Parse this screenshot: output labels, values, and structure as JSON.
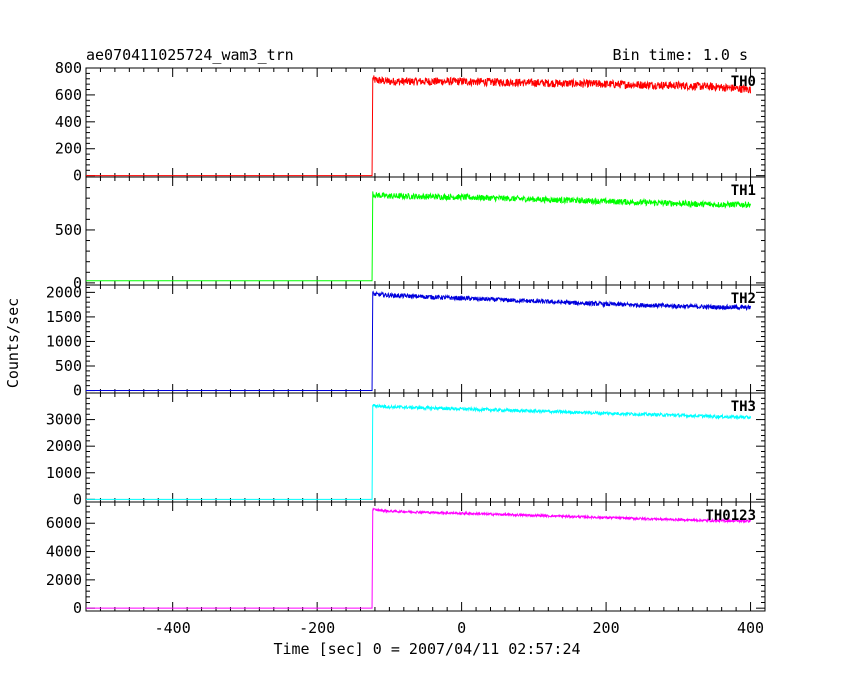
{
  "header": {
    "title": "ae070411025724_wam3_trn",
    "bin_time": "Bin time: 1.0 s"
  },
  "chart_data": {
    "type": "line",
    "xlabel": "Time [sec] 0 = 2007/04/11 02:57:24",
    "ylabel": "Counts/sec",
    "xlim": [
      -520,
      420
    ],
    "x_ticks": [
      -400,
      -200,
      0,
      200,
      400
    ],
    "grid": false,
    "trigger_time": -123,
    "data_end": 400,
    "panels": [
      {
        "name": "TH0",
        "color": "#ff0000",
        "ylim": [
          -10,
          800
        ],
        "y_ticks": [
          0,
          200,
          400,
          600,
          800
        ],
        "x": [
          -520,
          -124,
          -123,
          -120,
          -100,
          0,
          100,
          200,
          300,
          350,
          400
        ],
        "y": [
          0,
          0,
          720,
          710,
          700,
          700,
          690,
          680,
          670,
          660,
          640
        ],
        "noise": 30
      },
      {
        "name": "TH1",
        "color": "#00ff00",
        "ylim": [
          -20,
          1000
        ],
        "y_ticks": [
          0,
          500
        ],
        "x": [
          -520,
          -124,
          -123,
          -120,
          -100,
          0,
          100,
          200,
          300,
          350,
          400
        ],
        "y": [
          20,
          20,
          840,
          830,
          820,
          810,
          790,
          770,
          750,
          740,
          740
        ],
        "noise": 28
      },
      {
        "name": "TH2",
        "color": "#0000dd",
        "ylim": [
          -50,
          2150
        ],
        "y_ticks": [
          0,
          500,
          1000,
          1500,
          2000
        ],
        "x": [
          -520,
          -124,
          -123,
          -120,
          -100,
          0,
          100,
          200,
          300,
          350,
          400
        ],
        "y": [
          0,
          0,
          1980,
          1960,
          1940,
          1880,
          1820,
          1760,
          1720,
          1700,
          1690
        ],
        "noise": 45
      },
      {
        "name": "TH3",
        "color": "#00ffff",
        "ylim": [
          -100,
          4000
        ],
        "y_ticks": [
          0,
          1000,
          2000,
          3000
        ],
        "x": [
          -520,
          -124,
          -123,
          -120,
          -100,
          0,
          100,
          200,
          300,
          350,
          400
        ],
        "y": [
          0,
          0,
          3550,
          3520,
          3480,
          3400,
          3320,
          3240,
          3160,
          3120,
          3080
        ],
        "noise": 60
      },
      {
        "name": "TH0123",
        "color": "#ff00ff",
        "ylim": [
          -200,
          7500
        ],
        "y_ticks": [
          0,
          2000,
          4000,
          6000
        ],
        "x": [
          -520,
          -124,
          -123,
          -120,
          -100,
          0,
          100,
          200,
          300,
          350,
          400
        ],
        "y": [
          0,
          0,
          7000,
          6950,
          6850,
          6700,
          6550,
          6400,
          6250,
          6180,
          6150
        ],
        "noise": 80
      }
    ]
  }
}
